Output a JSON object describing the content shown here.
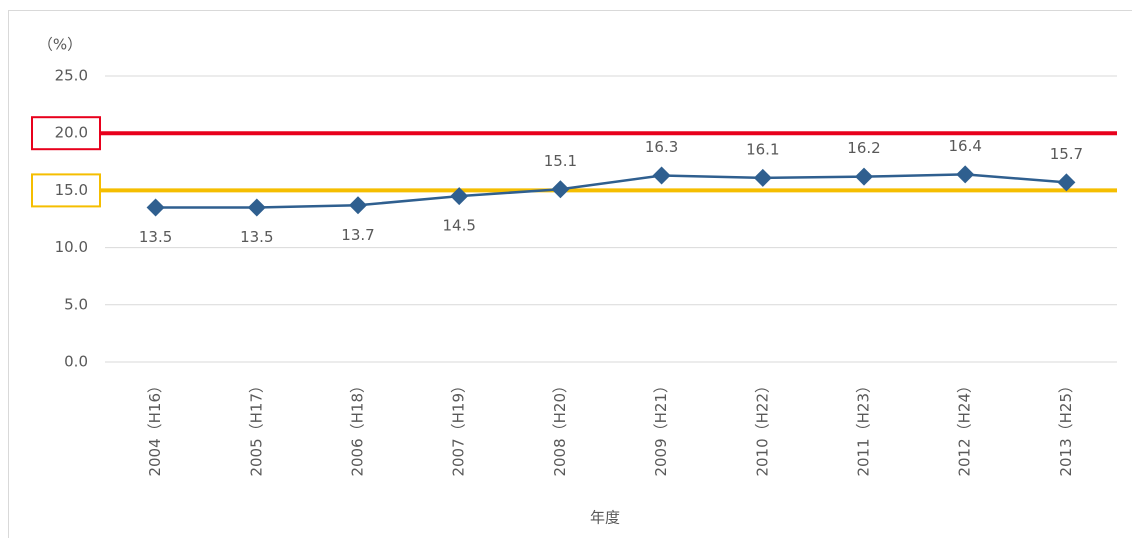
{
  "chart_data": {
    "type": "line",
    "y_unit_label": "（%）",
    "x_axis_label": "年度",
    "categories": [
      "2004（H16）",
      "2005（H17）",
      "2006（H18）",
      "2007（H19）",
      "2008（H20）",
      "2009（H21）",
      "2010（H22）",
      "2011（H23）",
      "2012（H24）",
      "2013（H25）"
    ],
    "series": [
      {
        "color": "#2f5f8f",
        "values": [
          13.5,
          13.5,
          13.7,
          14.5,
          15.1,
          16.3,
          16.1,
          16.2,
          16.4,
          15.7
        ]
      }
    ],
    "ylim": [
      0,
      25
    ],
    "yticks": [
      {
        "value": 0,
        "label": "0.0"
      },
      {
        "value": 5,
        "label": "5.0"
      },
      {
        "value": 10,
        "label": "10.0"
      },
      {
        "value": 15,
        "label": "15.0"
      },
      {
        "value": 20,
        "label": "20.0"
      },
      {
        "value": 25,
        "label": "25.0"
      }
    ],
    "grid": true,
    "reference_lines": [
      {
        "value": 20,
        "color": "#e8001c"
      },
      {
        "value": 15,
        "color": "#f5be00"
      }
    ]
  }
}
